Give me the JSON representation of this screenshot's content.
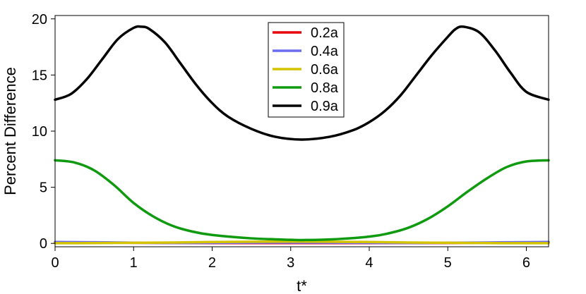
{
  "chart_data": {
    "type": "line",
    "xlabel": "t*",
    "ylabel": "Percent Difference",
    "xlim": [
      0,
      6.2832
    ],
    "ylim": [
      -0.3,
      20.3
    ],
    "xticks": [
      0,
      1,
      2,
      3,
      4,
      5,
      6
    ],
    "yticks": [
      0,
      5,
      10,
      15,
      20
    ],
    "xtick_labels": [
      "0",
      "1",
      "2",
      "3",
      "4",
      "5",
      "6"
    ],
    "ytick_labels": [
      "0",
      "5",
      "10",
      "15",
      "20"
    ],
    "grid": false,
    "legend_position": "top-center",
    "series": [
      {
        "name": "0.2a",
        "color": "#e8000b",
        "x": [
          0,
          0.5,
          1.0,
          1.5,
          2.0,
          2.5,
          3.0,
          3.5,
          4.0,
          4.5,
          5.0,
          5.5,
          6.0,
          6.2832
        ],
        "values": [
          0.1,
          0.08,
          0.05,
          0.04,
          0.03,
          0.03,
          0.03,
          0.03,
          0.03,
          0.03,
          0.04,
          0.06,
          0.09,
          0.1
        ]
      },
      {
        "name": "0.4a",
        "color": "#6b6bf2",
        "x": [
          0,
          0.5,
          1.0,
          1.5,
          2.0,
          2.5,
          3.0,
          3.5,
          4.0,
          4.5,
          5.0,
          5.5,
          6.0,
          6.2832
        ],
        "values": [
          0.12,
          0.1,
          0.06,
          0.04,
          0.05,
          0.07,
          0.08,
          0.07,
          0.05,
          0.04,
          0.05,
          0.08,
          0.11,
          0.12
        ]
      },
      {
        "name": "0.6a",
        "color": "#d4c400",
        "x": [
          0,
          0.5,
          1.0,
          1.5,
          2.0,
          2.5,
          3.0,
          3.5,
          4.0,
          4.5,
          5.0,
          5.5,
          6.0,
          6.2832
        ],
        "values": [
          0.02,
          0.03,
          0.05,
          0.08,
          0.12,
          0.15,
          0.16,
          0.15,
          0.12,
          0.08,
          0.05,
          0.03,
          0.02,
          0.02
        ]
      },
      {
        "name": "0.8a",
        "color": "#0f9a0f",
        "x": [
          0,
          0.25,
          0.5,
          0.75,
          1.0,
          1.25,
          1.5,
          1.75,
          2.0,
          2.5,
          3.0,
          3.1416,
          3.5,
          4.0,
          4.25,
          4.5,
          4.75,
          5.0,
          5.25,
          5.5,
          5.75,
          6.0,
          6.2832
        ],
        "values": [
          7.4,
          7.2,
          6.5,
          5.2,
          3.6,
          2.4,
          1.55,
          1.05,
          0.75,
          0.45,
          0.32,
          0.3,
          0.35,
          0.6,
          0.9,
          1.4,
          2.2,
          3.3,
          4.6,
          5.8,
          6.8,
          7.3,
          7.4
        ]
      },
      {
        "name": "0.9a",
        "color": "#000000",
        "x": [
          0,
          0.2,
          0.4,
          0.6,
          0.8,
          1.0,
          1.1,
          1.2,
          1.4,
          1.6,
          1.8,
          2.0,
          2.2,
          2.5,
          2.8,
          3.1416,
          3.5,
          3.8,
          4.0,
          4.2,
          4.4,
          4.6,
          4.8,
          5.0,
          5.1,
          5.2,
          5.4,
          5.6,
          5.8,
          6.0,
          6.2832
        ],
        "values": [
          12.8,
          13.3,
          14.6,
          16.4,
          18.2,
          19.2,
          19.3,
          19.1,
          17.9,
          16.0,
          14.1,
          12.5,
          11.3,
          10.2,
          9.5,
          9.25,
          9.5,
          10.1,
          10.8,
          11.8,
          13.2,
          15.0,
          16.8,
          18.4,
          19.1,
          19.3,
          18.8,
          17.2,
          15.2,
          13.5,
          12.8
        ]
      }
    ]
  }
}
